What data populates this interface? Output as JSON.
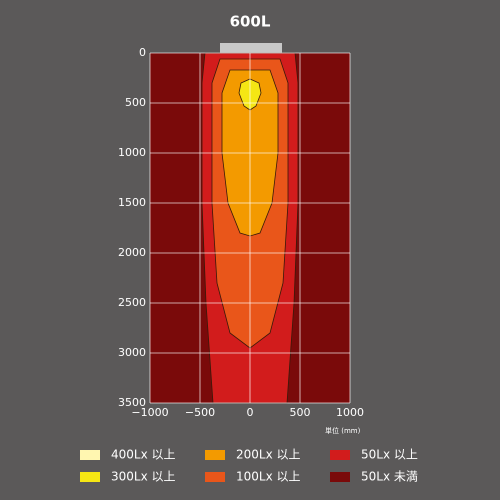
{
  "chart_data": {
    "type": "contour",
    "title": "600L",
    "x_label": "単位 (mm)",
    "xlim": [
      -1000,
      1000
    ],
    "ylim": [
      0,
      3500
    ],
    "y_reversed": true,
    "grid": true,
    "background_color": "#7a0a0a",
    "xticks": [
      {
        "value": -1000,
        "label": "−1000"
      },
      {
        "value": -500,
        "label": "−500"
      },
      0,
      500,
      1000
    ],
    "yticks": [
      0,
      500,
      1000,
      1500,
      2000,
      2500,
      3000,
      3500
    ],
    "series": [
      {
        "name": "400Lx 以上",
        "color": "#fff6b0",
        "x": [],
        "y": []
      },
      {
        "name": "300Lx 以上",
        "color": "#f5e614",
        "x": [
          0,
          90,
          110,
          60,
          0,
          -60,
          -110,
          -90
        ],
        "y": [
          260,
          300,
          400,
          530,
          570,
          530,
          400,
          300
        ]
      },
      {
        "name": "200Lx 以上",
        "color": "#f39a00",
        "x": [
          -200,
          -280,
          -280,
          -220,
          -100,
          0,
          100,
          220,
          280,
          280,
          200
        ],
        "y": [
          170,
          400,
          1000,
          1500,
          1800,
          1830,
          1800,
          1500,
          1000,
          400,
          170
        ]
      },
      {
        "name": "100Lx 以上",
        "color": "#e9561a",
        "x": [
          -300,
          -380,
          -380,
          -330,
          -200,
          0,
          200,
          330,
          380,
          380,
          300
        ],
        "y": [
          60,
          300,
          1500,
          2300,
          2800,
          2950,
          2800,
          2300,
          1500,
          300,
          60
        ]
      },
      {
        "name": "50Lx 以上",
        "color": "#d21c1c",
        "x": [
          -450,
          -480,
          -480,
          -440,
          -370,
          370,
          440,
          480,
          480,
          450
        ],
        "y": [
          0,
          300,
          1500,
          2500,
          3500,
          3500,
          2500,
          1500,
          300,
          0
        ]
      },
      {
        "name": "50Lx 未満",
        "color": "#7a0a0a",
        "x": [],
        "y": []
      }
    ]
  }
}
